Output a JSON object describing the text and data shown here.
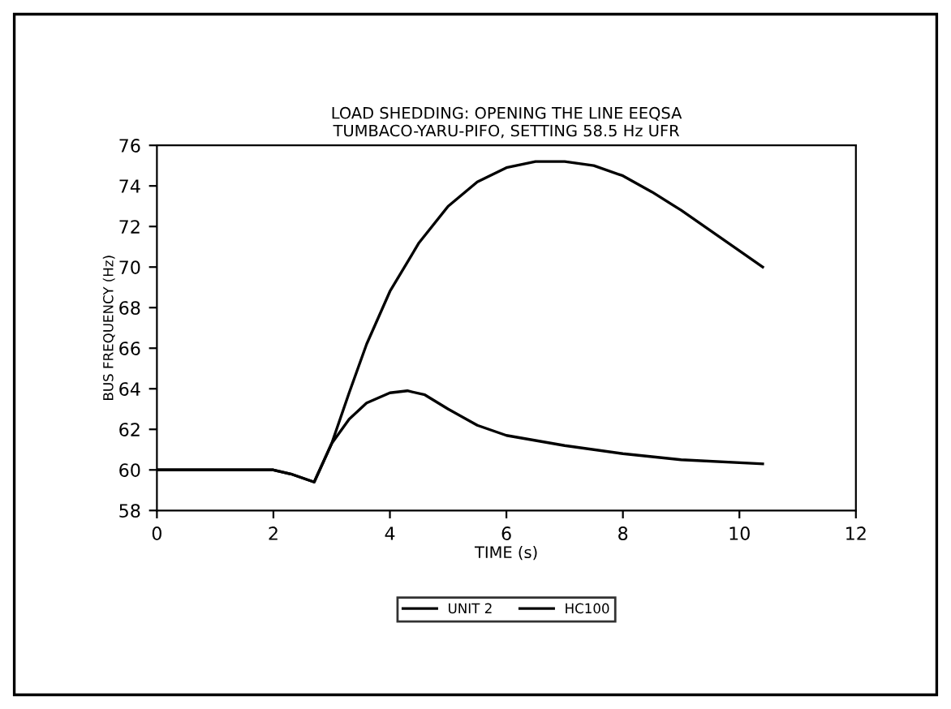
{
  "chart_data": {
    "type": "line",
    "title": "LOAD SHEDDING: OPENING THE LINE EEQSA",
    "subtitle": "TUMBACO-YARU-PIFO, SETTING 58.5 Hz UFR",
    "xlabel": "TIME (s)",
    "ylabel": "BUS FREQUENCY (Hz)",
    "series": [
      {
        "name": "UNIT 2",
        "color": "#000000",
        "x": [
          0,
          1,
          2,
          2.3,
          2.7,
          3.0,
          3.3,
          3.6,
          4.0,
          4.5,
          5.0,
          5.5,
          6.0,
          6.5,
          7.0,
          7.5,
          8.0,
          8.5,
          9.0,
          9.5,
          10.0,
          10.4
        ],
        "values": [
          60,
          60,
          60,
          59.8,
          59.4,
          61.3,
          63.8,
          66.2,
          68.8,
          71.2,
          73,
          74.2,
          74.9,
          75.2,
          75.2,
          75.0,
          74.5,
          73.7,
          72.8,
          71.8,
          70.8,
          70.0
        ]
      },
      {
        "name": "HC100",
        "color": "#000000",
        "x": [
          0,
          1,
          2,
          2.3,
          2.7,
          3.0,
          3.3,
          3.6,
          4.0,
          4.3,
          4.6,
          5.0,
          5.5,
          6.0,
          7.0,
          8.0,
          9.0,
          10.4
        ],
        "values": [
          60,
          60,
          60,
          59.8,
          59.4,
          61.3,
          62.5,
          63.3,
          63.8,
          63.9,
          63.7,
          63.0,
          62.2,
          61.7,
          61.2,
          60.8,
          60.5,
          60.3
        ]
      }
    ],
    "xlim": [
      0,
      12
    ],
    "xticks": [
      0,
      2,
      4,
      6,
      8,
      10,
      12
    ],
    "ylim": [
      58,
      76
    ],
    "yticks": [
      58,
      60,
      62,
      64,
      66,
      68,
      70,
      72,
      74,
      76
    ],
    "grid": false,
    "legend": "bottom",
    "line_style": "solid",
    "marker": "none"
  }
}
